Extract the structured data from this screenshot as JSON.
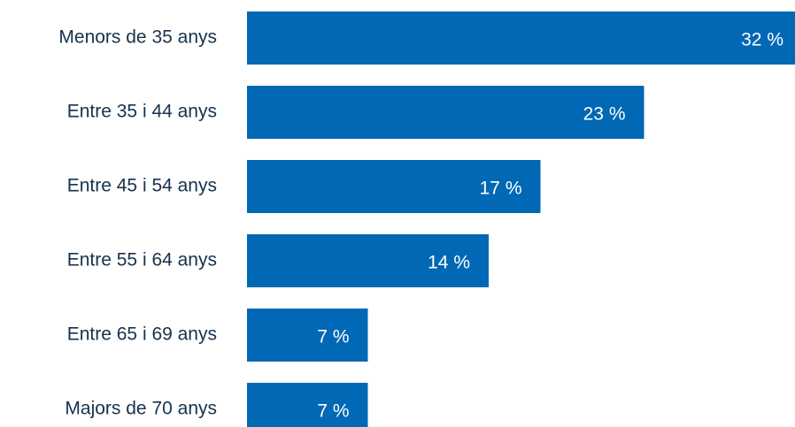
{
  "chart_data": {
    "type": "hbar",
    "categories": [
      "Menors de 35 anys",
      "Entre 35 i 44 anys",
      "Entre 45 i 54 anys",
      "Entre 55 i 64 anys",
      "Entre 65 i 69 anys",
      "Majors de 70 anys"
    ],
    "values": [
      32,
      23,
      17,
      14,
      7,
      7
    ],
    "value_labels": [
      "32 %",
      "23 %",
      "17 %",
      "14 %",
      "7 %",
      "7 %"
    ],
    "color": "#0068b4"
  }
}
